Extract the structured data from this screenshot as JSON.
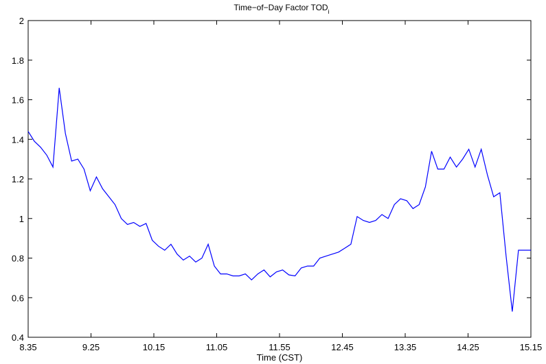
{
  "chart_data": {
    "type": "line",
    "title": "Time−of−Day Factor TOD",
    "title_subscript": "i",
    "xlabel": "Time (CST)",
    "ylabel": "",
    "xlim": [
      0,
      81
    ],
    "ylim": [
      0.4,
      2.0
    ],
    "x_tick_labels": [
      "8.35",
      "9.25",
      "10.15",
      "11.05",
      "11.55",
      "12.45",
      "13.35",
      "14.25",
      "15.15"
    ],
    "y_ticks": [
      0.4,
      0.6,
      0.8,
      1.0,
      1.2,
      1.4,
      1.6,
      1.8,
      2.0
    ],
    "y_tick_labels": [
      "0.4",
      "0.6",
      "0.8",
      "1",
      "1.2",
      "1.4",
      "1.6",
      "1.8",
      "2"
    ],
    "grid": false,
    "legend": "none",
    "line_color": "#0000ff",
    "series": [
      {
        "x": [
          0,
          1,
          2,
          3,
          4,
          5,
          6,
          7,
          8,
          9,
          10,
          11,
          12,
          13,
          14,
          15,
          16,
          17,
          18,
          19,
          20,
          21,
          22,
          23,
          24,
          25,
          26,
          27,
          28,
          29,
          30,
          31,
          32,
          33,
          34,
          35,
          36,
          37,
          38,
          39,
          40,
          41,
          42,
          43,
          44,
          45,
          46,
          47,
          48,
          49,
          50,
          51,
          52,
          53,
          54,
          55,
          56,
          57,
          58,
          59,
          60,
          61,
          62,
          63,
          64,
          65,
          66,
          67,
          68,
          69,
          70,
          71,
          72,
          73,
          74,
          75,
          76,
          77,
          78,
          79,
          80,
          81
        ],
        "values": [
          1.44,
          1.39,
          1.36,
          1.32,
          1.26,
          1.66,
          1.43,
          1.29,
          1.3,
          1.25,
          1.14,
          1.21,
          1.15,
          1.11,
          1.07,
          1.0,
          0.97,
          0.98,
          0.96,
          0.975,
          0.89,
          0.86,
          0.84,
          0.87,
          0.82,
          0.79,
          0.81,
          0.78,
          0.8,
          0.87,
          0.76,
          0.72,
          0.72,
          0.71,
          0.71,
          0.72,
          0.69,
          0.72,
          0.74,
          0.705,
          0.73,
          0.74,
          0.715,
          0.71,
          0.75,
          0.76,
          0.76,
          0.8,
          0.81,
          0.82,
          0.83,
          0.85,
          0.87,
          1.01,
          0.99,
          0.98,
          0.99,
          1.02,
          1.0,
          1.07,
          1.1,
          1.09,
          1.05,
          1.07,
          1.16,
          1.34,
          1.25,
          1.25,
          1.31,
          1.26,
          1.3,
          1.35,
          1.26,
          1.35,
          1.22,
          1.11,
          1.13,
          0.81,
          0.53,
          0.84,
          0.84,
          0.84
        ]
      }
    ]
  }
}
